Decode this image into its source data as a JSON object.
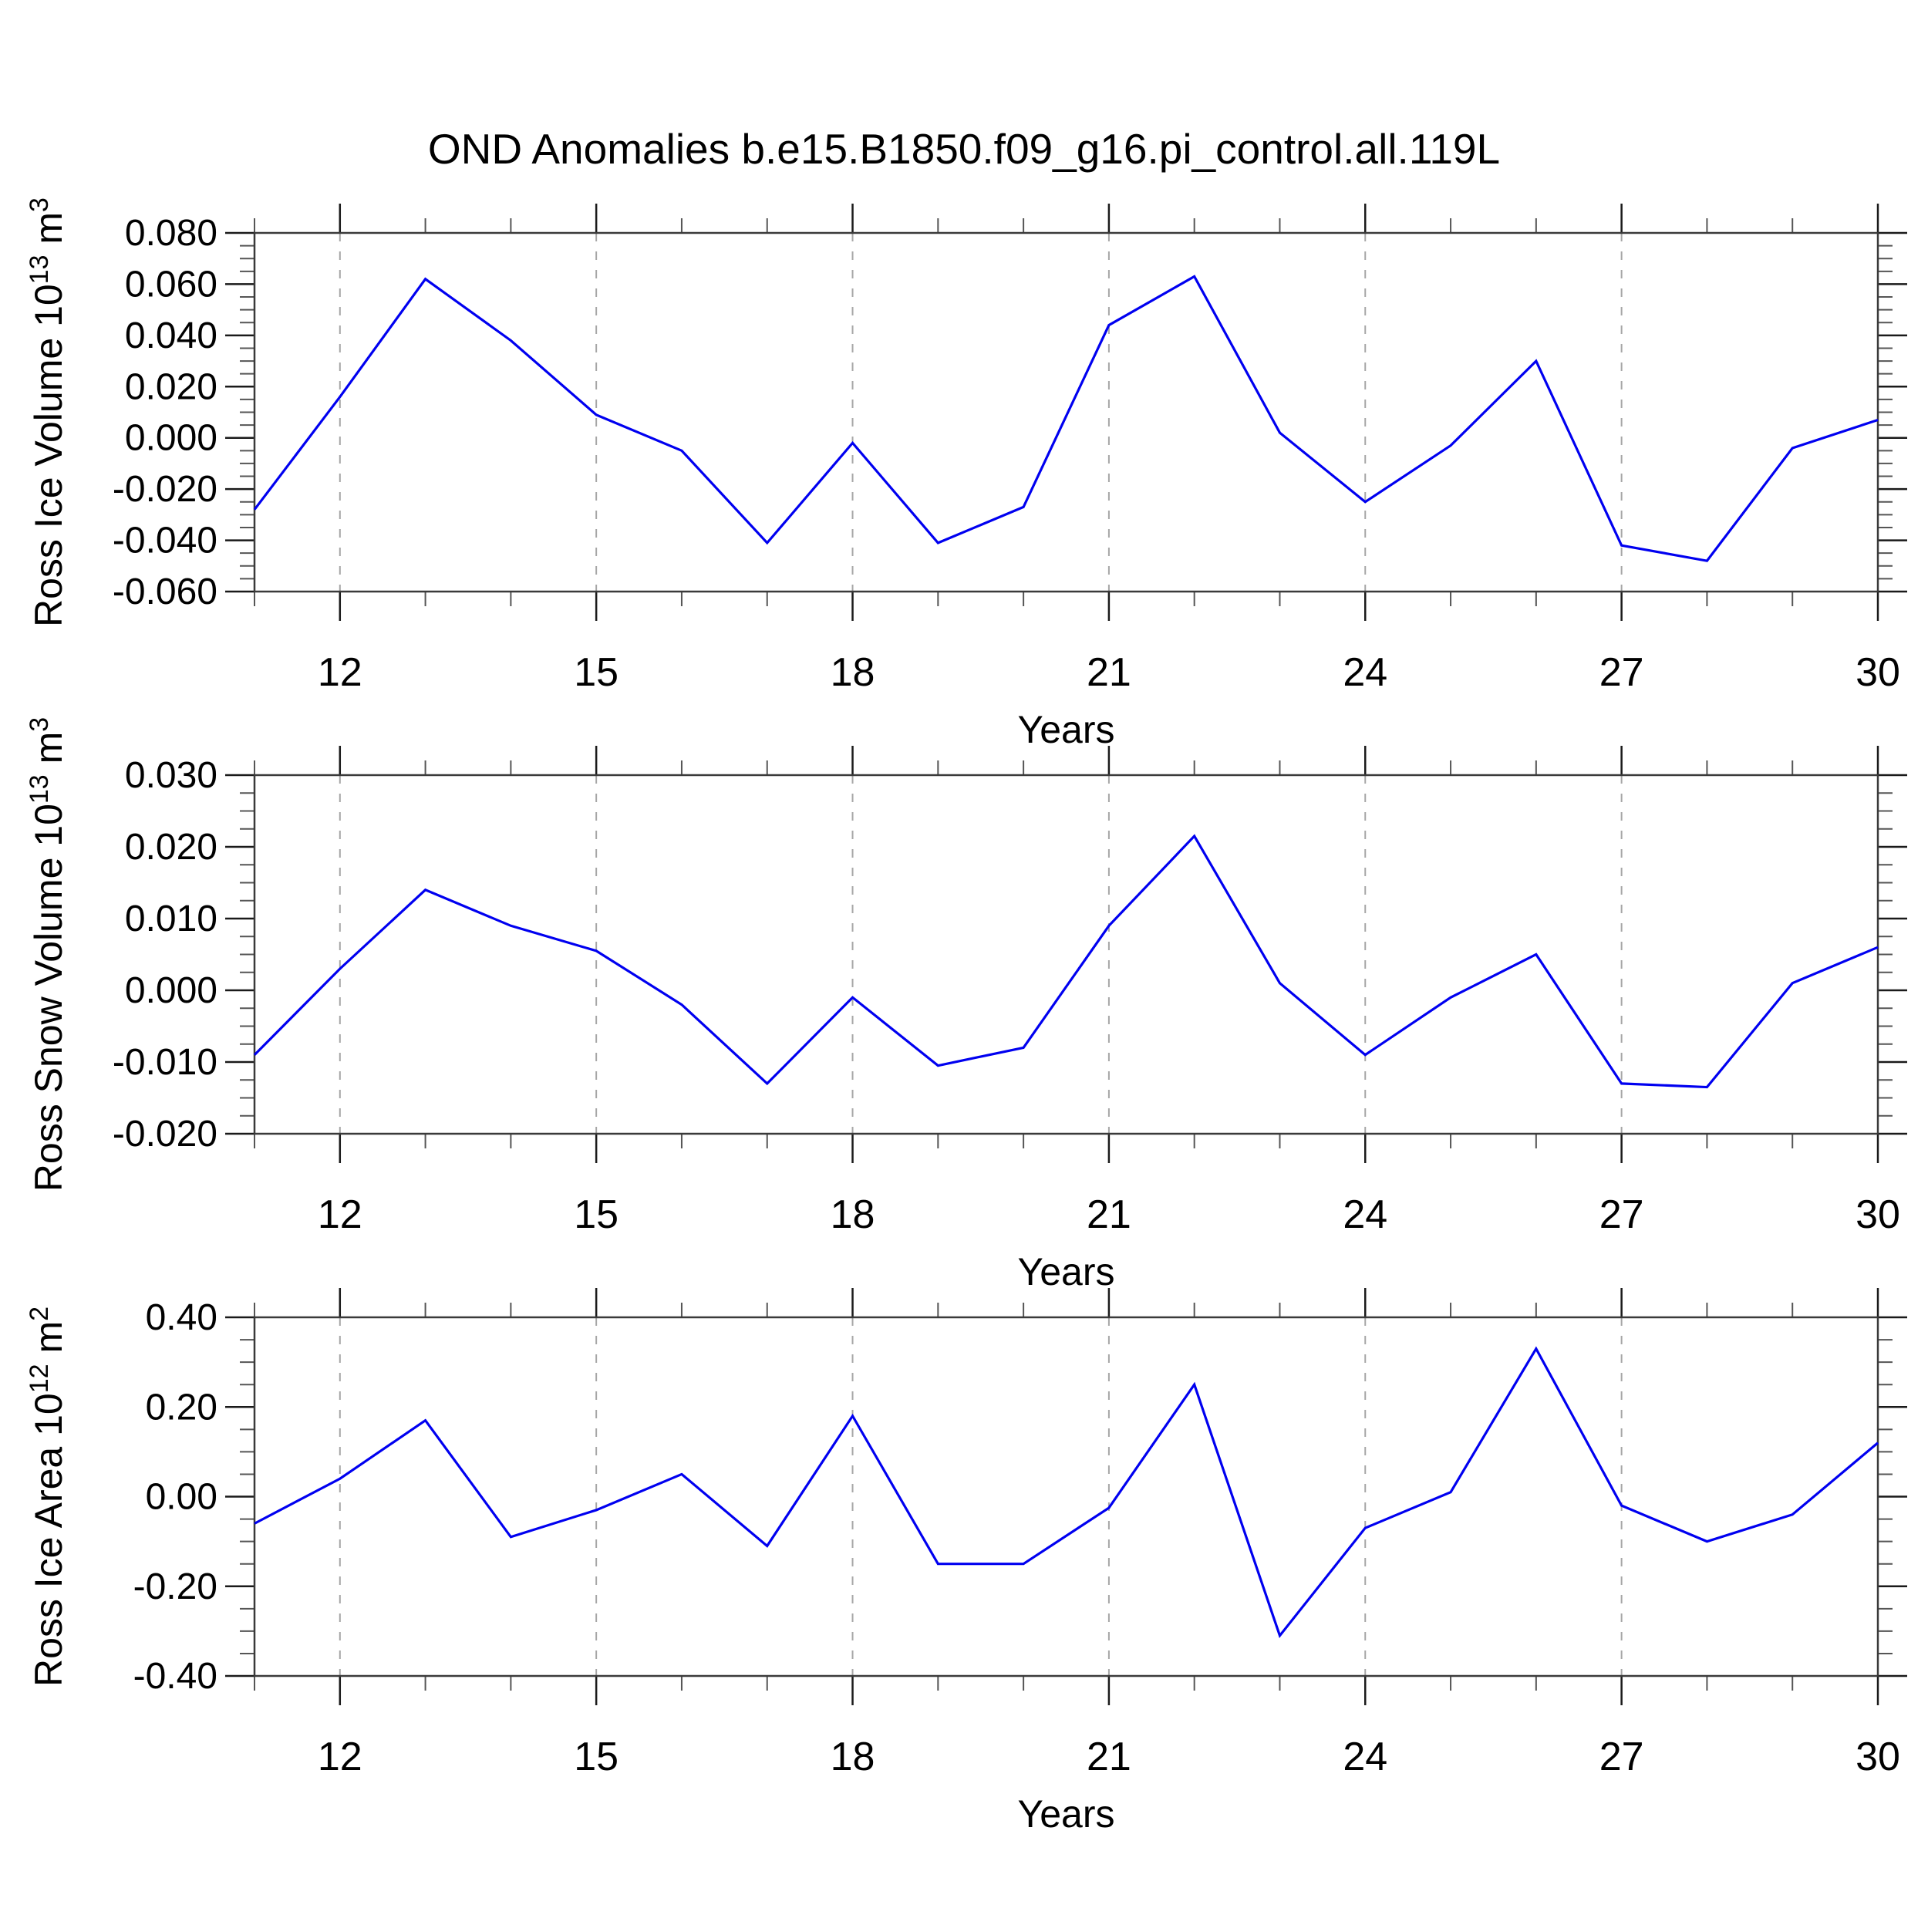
{
  "title": "OND Anomalies b.e15.B1850.f09_g16.pi_control.all.119L",
  "colors": {
    "series_line": "#0000f0",
    "frame": "#3a3a3a",
    "major_tick": "#1a1a1a",
    "minor_tick": "#555555",
    "gridline": "#a6a6a6",
    "text": "#000000",
    "background": "#ffffff"
  },
  "x_axis": {
    "label": "Years",
    "range": [
      11,
      30
    ],
    "major_ticks": [
      12,
      15,
      18,
      21,
      24,
      27,
      30
    ],
    "minor_step": 1,
    "gridline_years": [
      12,
      15,
      18,
      21,
      24,
      27
    ]
  },
  "chart_data": [
    {
      "type": "line",
      "id": "ross-ice-volume",
      "ylabel": "Ross Ice Volume 10^13 m^3",
      "ylabel_parts": {
        "pre": "Ross Ice Volume 10",
        "sup1": "13",
        "mid": " m",
        "sup2": "3"
      },
      "xlabel": "Years",
      "ylim": [
        -0.06,
        0.08
      ],
      "y_major_step": 0.02,
      "y_minor_step": 0.005,
      "y_decimals": 3,
      "y_tick_labels": [
        "0.080",
        "0.060",
        "0.040",
        "0.020",
        "0.000",
        "-0.020",
        "-0.040",
        "-0.060"
      ],
      "x": [
        11,
        12,
        13,
        14,
        15,
        16,
        17,
        18,
        19,
        20,
        21,
        22,
        23,
        24,
        25,
        26,
        27,
        28,
        29,
        30
      ],
      "values": [
        -0.028,
        0.016,
        0.062,
        0.038,
        0.009,
        -0.005,
        -0.041,
        -0.002,
        -0.041,
        -0.027,
        0.044,
        0.063,
        0.002,
        -0.025,
        -0.003,
        0.03,
        -0.042,
        -0.048,
        -0.004,
        0.007
      ]
    },
    {
      "type": "line",
      "id": "ross-snow-volume",
      "ylabel": "Ross Snow Volume 10^13 m^3",
      "ylabel_parts": {
        "pre": "Ross Snow Volume 10",
        "sup1": "13",
        "mid": " m",
        "sup2": "3"
      },
      "xlabel": "Years",
      "ylim": [
        -0.02,
        0.03
      ],
      "y_major_step": 0.01,
      "y_minor_step": 0.0025,
      "y_decimals": 3,
      "y_tick_labels": [
        "0.030",
        "0.020",
        "0.010",
        "0.000",
        "-0.010",
        "-0.020"
      ],
      "x": [
        11,
        12,
        13,
        14,
        15,
        16,
        17,
        18,
        19,
        20,
        21,
        22,
        23,
        24,
        25,
        26,
        27,
        28,
        29,
        30
      ],
      "values": [
        -0.009,
        0.003,
        0.014,
        0.009,
        0.0055,
        -0.002,
        -0.013,
        -0.001,
        -0.0105,
        -0.008,
        0.009,
        0.0215,
        0.001,
        -0.009,
        -0.001,
        0.005,
        -0.013,
        -0.0135,
        0.001,
        0.006
      ]
    },
    {
      "type": "line",
      "id": "ross-ice-area",
      "ylabel": "Ross Ice Area 10^12 m^2",
      "ylabel_parts": {
        "pre": "Ross Ice Area 10",
        "sup1": "12",
        "mid": " m",
        "sup2": "2"
      },
      "xlabel": "Years",
      "ylim": [
        -0.4,
        0.4
      ],
      "y_major_step": 0.2,
      "y_minor_step": 0.05,
      "y_decimals": 2,
      "y_tick_labels": [
        "0.40",
        "0.20",
        "0.00",
        "-0.20",
        "-0.40"
      ],
      "x": [
        11,
        12,
        13,
        14,
        15,
        16,
        17,
        18,
        19,
        20,
        21,
        22,
        23,
        24,
        25,
        26,
        27,
        28,
        29,
        30
      ],
      "values": [
        -0.06,
        0.04,
        0.17,
        -0.09,
        -0.03,
        0.05,
        -0.11,
        0.18,
        -0.15,
        -0.15,
        -0.025,
        0.25,
        -0.31,
        -0.07,
        0.01,
        0.33,
        -0.02,
        -0.1,
        -0.04,
        0.12
      ]
    }
  ]
}
